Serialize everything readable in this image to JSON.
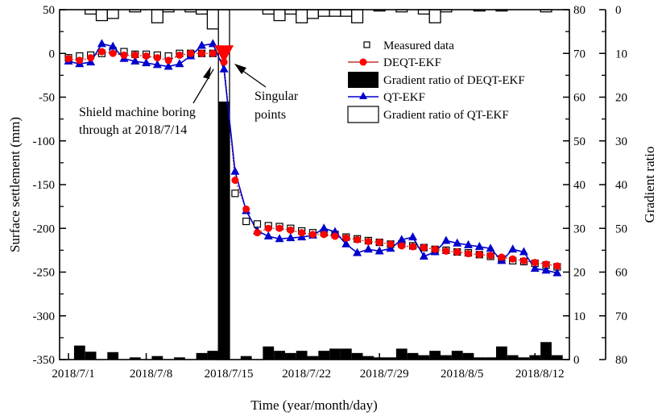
{
  "chart_data": {
    "type": "line",
    "xlabel": "Time (year/month/day)",
    "ylabel": "Surface settlement (mm)",
    "y2label": "Gradient ratio",
    "ylim": [
      -350,
      50
    ],
    "yticks": [
      50,
      0,
      -50,
      -100,
      -150,
      -200,
      -250,
      -300,
      -350
    ],
    "y2lim_inner": [
      0,
      80
    ],
    "y2ticks_inner": [
      80,
      70,
      60,
      50,
      40,
      30,
      20,
      10,
      0
    ],
    "y2lim_outer_reversed": [
      0,
      80
    ],
    "y2ticks_outer": [
      0,
      10,
      20,
      30,
      40,
      50,
      60,
      70,
      80
    ],
    "x_unit": "days since 2018/7/1",
    "xlim": [
      -0.8,
      45.1
    ],
    "xticks": [
      {
        "day": 0,
        "label": "2018/7/1"
      },
      {
        "day": 7,
        "label": "2018/7/8"
      },
      {
        "day": 14,
        "label": "2018/7/15"
      },
      {
        "day": 21,
        "label": "2018/7/22"
      },
      {
        "day": 28,
        "label": "2018/7/29"
      },
      {
        "day": 35,
        "label": "2018/8/5"
      },
      {
        "day": 42,
        "label": "2018/8/12"
      }
    ],
    "legend_position": "top-right",
    "series": [
      {
        "name": "Measured data",
        "kind": "scatter",
        "color": "#000000",
        "values": [
          -5,
          -3,
          -2,
          0,
          3,
          2,
          -1,
          -1,
          -2,
          -3,
          0,
          0,
          0,
          0,
          null,
          -160,
          -192,
          -195,
          -197,
          -198,
          -200,
          -203,
          -205,
          -205,
          -207,
          -210,
          -212,
          -214,
          -216,
          -218,
          -218,
          -220,
          -222,
          -224,
          -225,
          -227,
          -228,
          -230,
          -232,
          -235,
          -237,
          -238,
          -240,
          -242,
          -244
        ]
      },
      {
        "name": "DEQT-EKF",
        "kind": "line",
        "color": "#ff0000",
        "line_color": "#c0392b",
        "values": [
          -6,
          -8,
          -5,
          2,
          0,
          -2,
          -2,
          -3,
          -5,
          -8,
          -2,
          0,
          0,
          0,
          -10,
          -145,
          -178,
          -205,
          -200,
          -200,
          -202,
          -205,
          -207,
          -207,
          -209,
          -211,
          -213,
          -215,
          -216,
          -218,
          -220,
          -221,
          -222,
          -224,
          -226,
          -227,
          -229,
          -230,
          -231,
          -233,
          -235,
          -237,
          -239,
          -241,
          -243
        ]
      },
      {
        "name": "Gradient ratio of DEQT-EKF",
        "kind": "bar",
        "axis": "inner",
        "color": "#000000",
        "values": [
          0,
          3.2,
          1.8,
          0,
          1.7,
          0,
          0.5,
          0,
          0.8,
          0,
          0.5,
          0,
          1.5,
          2,
          59,
          0,
          0.8,
          0,
          3,
          2,
          1.5,
          2,
          0.8,
          2,
          2.5,
          2.5,
          1.5,
          0.8,
          0.5,
          0.5,
          2.5,
          1.5,
          1,
          2,
          1,
          2,
          1.5,
          0.5,
          0.5,
          3,
          1,
          0.5,
          1,
          4,
          1
        ]
      },
      {
        "name": "QT-EKF",
        "kind": "line",
        "color": "#0000cc",
        "values": [
          -9,
          -12,
          -10,
          11,
          8,
          -6,
          -9,
          -11,
          -13,
          -15,
          -12,
          -3,
          9,
          11,
          -18,
          -135,
          -180,
          -203,
          -209,
          -212,
          -211,
          -210,
          -208,
          -200,
          -204,
          -218,
          -228,
          -224,
          -226,
          -223,
          -213,
          -210,
          -232,
          -227,
          -214,
          -217,
          -219,
          -221,
          -223,
          -237,
          -224,
          -227,
          -246,
          -248,
          -251
        ]
      },
      {
        "name": "Gradient ratio of QT-EKF",
        "kind": "bar",
        "axis": "outer",
        "color": "#ffffff",
        "values": [
          0,
          0,
          1,
          2.5,
          2,
          0,
          0.5,
          0,
          3,
          0.5,
          0,
          0.5,
          1,
          4.4,
          80,
          0,
          0,
          0,
          1,
          2.5,
          1,
          3,
          2,
          1.5,
          1.5,
          1.5,
          3,
          0,
          0.3,
          0,
          0.5,
          0,
          1,
          3,
          0.5,
          0,
          0,
          0.3,
          0,
          0.3,
          0,
          0,
          0,
          0.5,
          0
        ]
      }
    ],
    "singular_point": {
      "day": 14,
      "value": 0,
      "color": "#ff0000"
    },
    "annotations": [
      {
        "lines": [
          "Shield machine boring",
          "through at 2018/7/14"
        ],
        "points_to_day": 13.5,
        "points_to_value": -5
      },
      {
        "lines": [
          "Singular",
          "points"
        ],
        "points_to_day": 14.5,
        "points_to_value": -5
      }
    ]
  }
}
